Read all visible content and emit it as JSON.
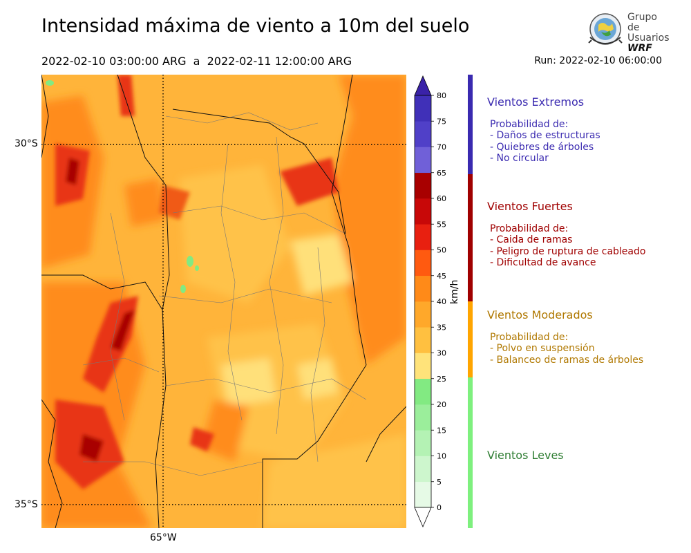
{
  "header": {
    "title": "Intensidad máxima de viento a 10m del suelo",
    "period": "2022-02-10 03:00:00 ARG  a  2022-02-11 12:00:00 ARG",
    "run": "Run: 2022-02-10 06:00:00"
  },
  "logo": {
    "line1": "Grupo de",
    "line2": "Usuarios",
    "line3": "WRF"
  },
  "map": {
    "lat_labels": [
      "30°S",
      "35°S"
    ],
    "lon_labels": [
      "65°W"
    ]
  },
  "colorbar": {
    "unit": "km/h",
    "ticks": [
      "0",
      "5",
      "10",
      "15",
      "20",
      "25",
      "30",
      "35",
      "40",
      "45",
      "50",
      "55",
      "60",
      "65",
      "70",
      "75",
      "80"
    ],
    "colors": [
      "#e6fae6",
      "#cdf6cd",
      "#b4f2b4",
      "#9bee9b",
      "#82ea82",
      "#ffe37a",
      "#ffc040",
      "#ffa82a",
      "#ff8a18",
      "#ff5a10",
      "#e82010",
      "#c80808",
      "#a80000",
      "#7060d8",
      "#5040c8",
      "#4030b8"
    ],
    "under_color": "#ffffff",
    "over_color": "#3a22a8"
  },
  "categories": [
    {
      "name": "Vientos Extremos",
      "color": "#3a2ab0",
      "lines": [
        "Probabilidad de:",
        "- Daños de estructuras",
        "- Quiebres de árboles",
        "- No circular"
      ]
    },
    {
      "name": "Vientos Fuertes",
      "color": "#a00000",
      "lines": [
        "Probabilidad de:",
        "- Caida de ramas",
        "- Peligro de ruptura de cableado",
        "- Dificultad de avance"
      ]
    },
    {
      "name": "Vientos Moderados",
      "color": "#b07800",
      "lines": [
        "Probabilidad de:",
        "- Polvo en suspensión",
        "- Balanceo de ramas de árboles"
      ]
    },
    {
      "name": "Vientos Leves",
      "color": "#2e7d32",
      "lines": []
    }
  ],
  "category_bar_colors": [
    "#3a2ab0",
    "#a00000",
    "#ffa500",
    "#7ef07e"
  ]
}
